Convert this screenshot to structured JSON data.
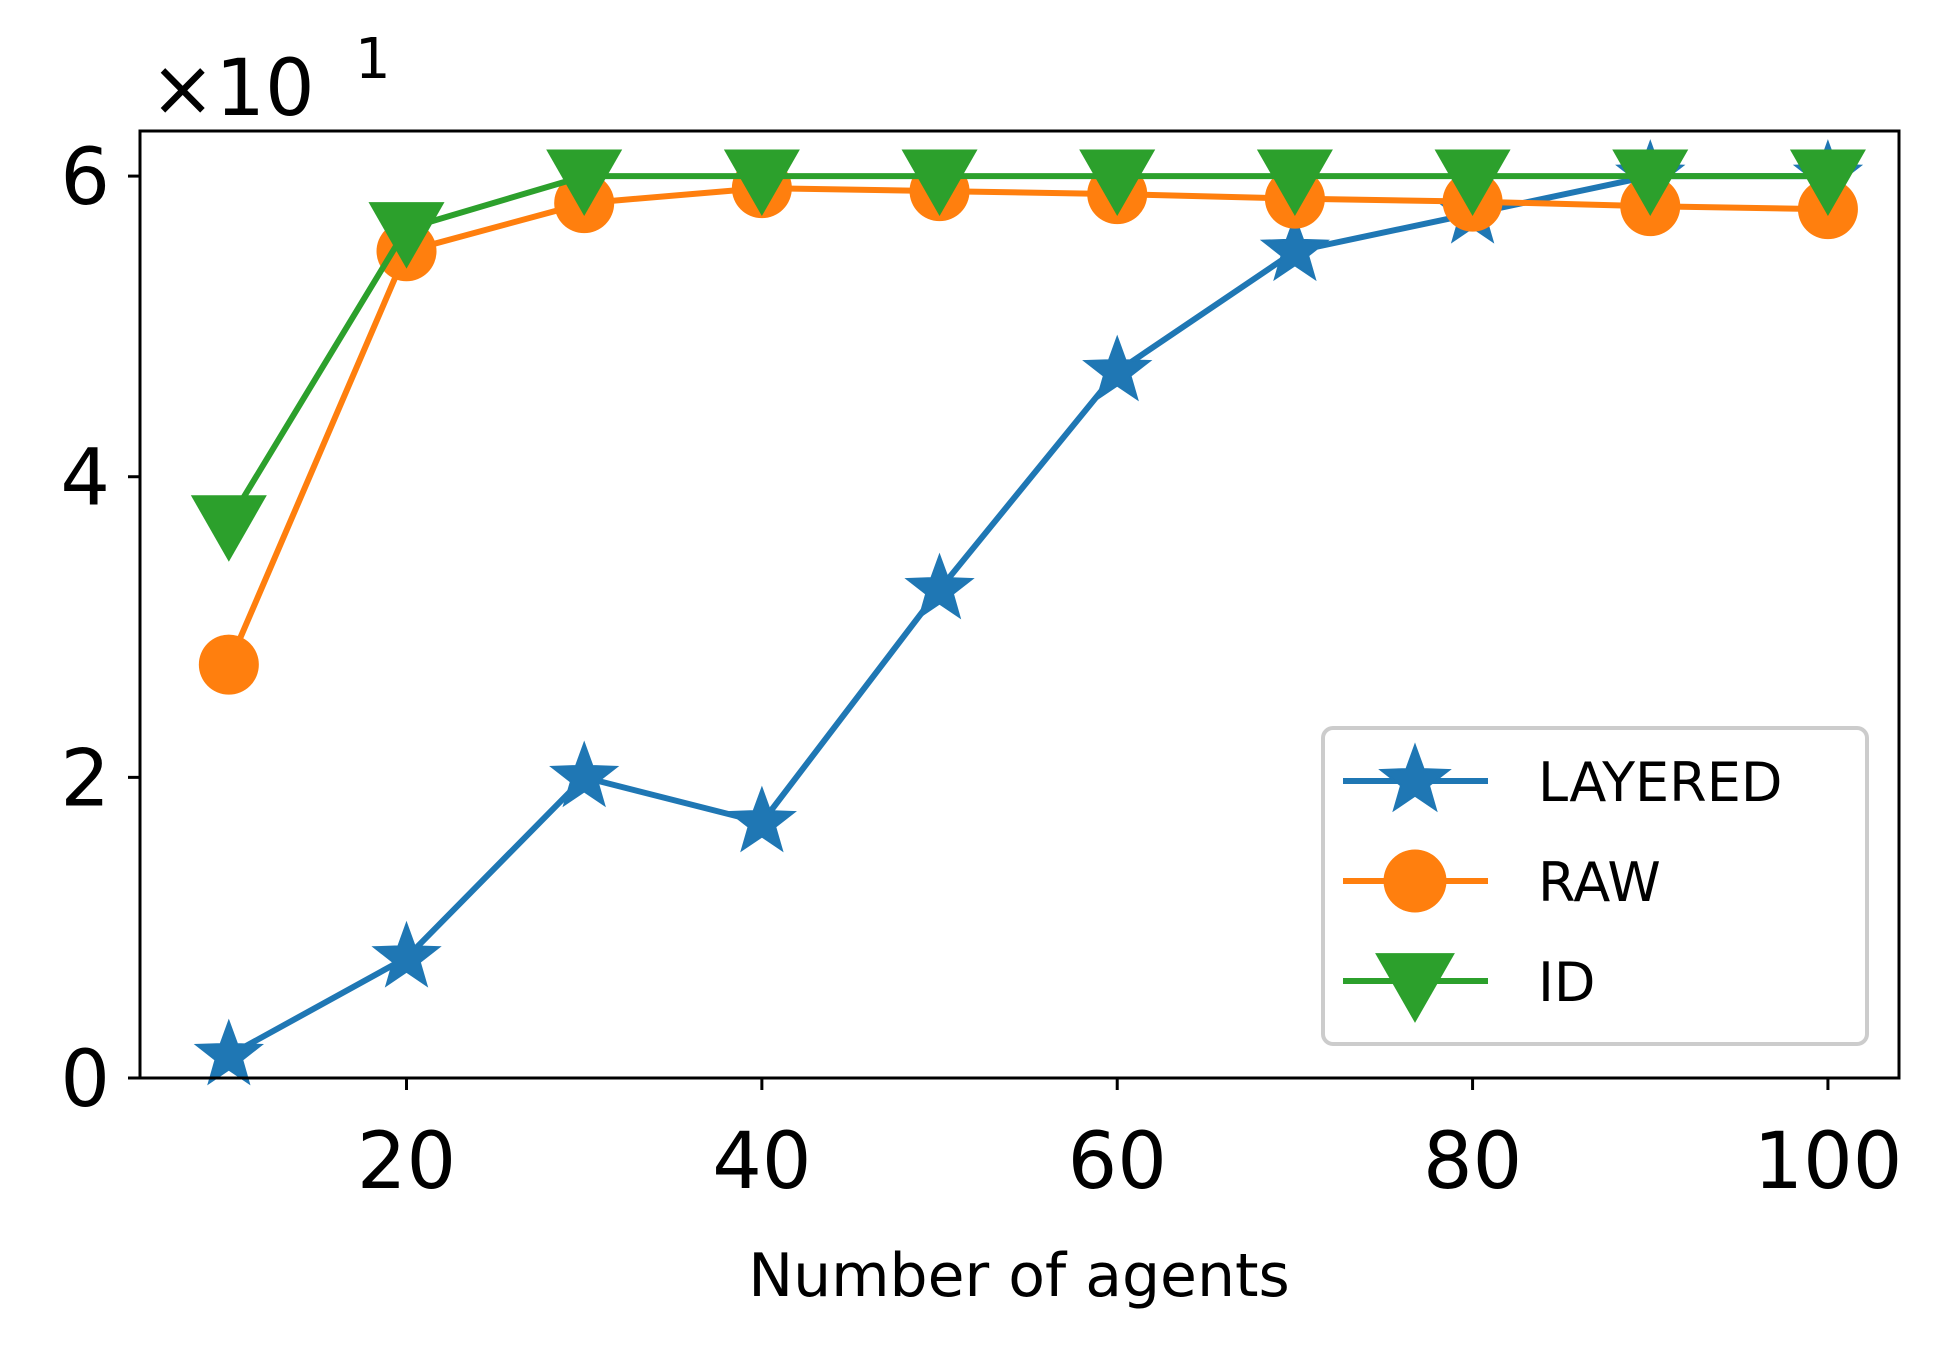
{
  "chart_data": {
    "type": "line",
    "title": "",
    "xlabel": "Number of agents",
    "ylabel": "",
    "y_multiplier": {
      "base": "×10",
      "exponent": "1"
    },
    "x": [
      10,
      20,
      30,
      40,
      50,
      60,
      70,
      80,
      90,
      100
    ],
    "xlim": [
      5,
      104
    ],
    "ylim": [
      0,
      6.3
    ],
    "xticks": [
      20,
      40,
      60,
      80,
      100
    ],
    "xtick_labels": [
      "20",
      "40",
      "60",
      "80",
      "100"
    ],
    "yticks": [
      0,
      2,
      4,
      6
    ],
    "ytick_labels": [
      "0",
      "2",
      "4",
      "6"
    ],
    "grid": false,
    "legend_position": "lower-right",
    "series": [
      {
        "name": "LAYERED",
        "color": "#1f77b4",
        "marker": "star",
        "values": [
          0.15,
          0.8,
          2.0,
          1.7,
          3.25,
          4.7,
          5.5,
          5.75,
          6.0,
          6.0
        ]
      },
      {
        "name": "RAW",
        "color": "#ff7f0e",
        "marker": "circle",
        "values": [
          2.75,
          5.5,
          5.82,
          5.92,
          5.9,
          5.88,
          5.85,
          5.83,
          5.8,
          5.78
        ]
      },
      {
        "name": "ID",
        "color": "#2ca02c",
        "marker": "triangle-down",
        "values": [
          3.7,
          5.65,
          6.0,
          6.0,
          6.0,
          6.0,
          6.0,
          6.0,
          6.0,
          6.0
        ]
      }
    ]
  }
}
